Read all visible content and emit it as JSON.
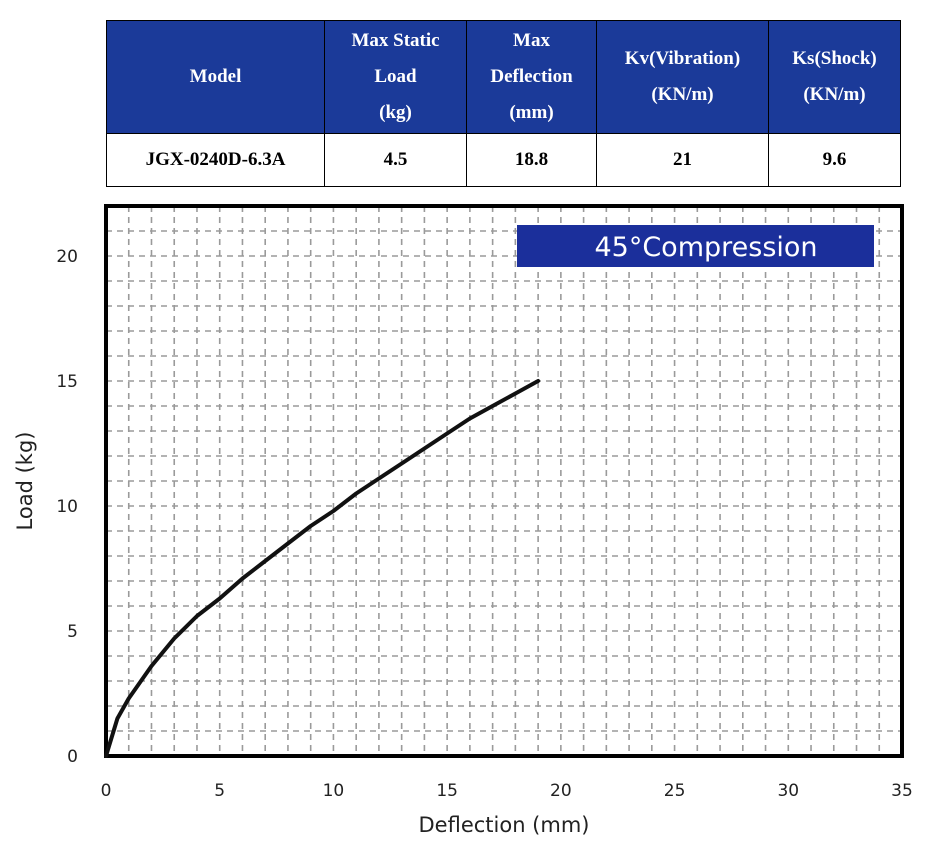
{
  "table": {
    "headers": [
      "Model",
      "Max Static\nLoad\n(kg)",
      "Max\nDeflection\n(mm)",
      "Kv(Vibration)\n(KN/m)",
      "Ks(Shock)\n(KN/m)"
    ],
    "row": [
      "JGX-0240D-6.3A",
      "4.5",
      "18.8",
      "21",
      "9.6"
    ],
    "header_bg": "#1b3a99"
  },
  "chart_data": {
    "type": "line",
    "title": "45°Compression",
    "xlabel": "Deflection (mm)",
    "ylabel": "Load (kg)",
    "xlim": [
      0,
      35
    ],
    "ylim": [
      0,
      22
    ],
    "xticks": [
      0,
      5,
      10,
      15,
      20,
      25,
      30,
      35
    ],
    "yticks": [
      0,
      5,
      10,
      15,
      20
    ],
    "grid": true,
    "legend_placement": "top-right",
    "series": [
      {
        "color": "#111111",
        "x": [
          0,
          0.5,
          1,
          2,
          3,
          4,
          5,
          6,
          7,
          8,
          9,
          10,
          11,
          12,
          13,
          14,
          15,
          16,
          17,
          18,
          19
        ],
        "y": [
          0,
          1.5,
          2.3,
          3.6,
          4.7,
          5.6,
          6.3,
          7.1,
          7.8,
          8.5,
          9.2,
          9.8,
          10.5,
          11.1,
          11.7,
          12.3,
          12.9,
          13.5,
          14.0,
          14.5,
          15.0
        ]
      }
    ]
  }
}
